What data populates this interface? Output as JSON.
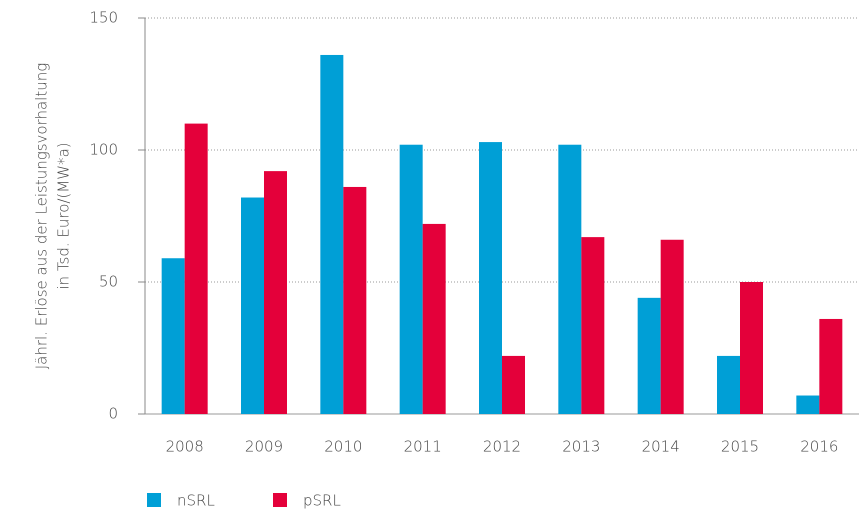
{
  "chart_data": {
    "type": "bar",
    "ylabel": [
      "Jährl. Erlöse aus der Leistungsvorhaltung",
      "in Tsd. Euro/(MW*a)"
    ],
    "categories": [
      "2008",
      "2009",
      "2010",
      "2011",
      "2012",
      "2013",
      "2014",
      "2015",
      "2016"
    ],
    "series": [
      {
        "name": "nSRL",
        "color": "#009fd6",
        "values": [
          59,
          82,
          136,
          102,
          103,
          102,
          44,
          22,
          7
        ]
      },
      {
        "name": "pSRL",
        "color": "#e4003a",
        "values": [
          110,
          92,
          86,
          72,
          22,
          67,
          66,
          50,
          36
        ]
      }
    ],
    "ylim": [
      0,
      150
    ],
    "yticks": [
      0,
      50,
      100,
      150
    ],
    "grid": true,
    "legend": "bottom"
  }
}
